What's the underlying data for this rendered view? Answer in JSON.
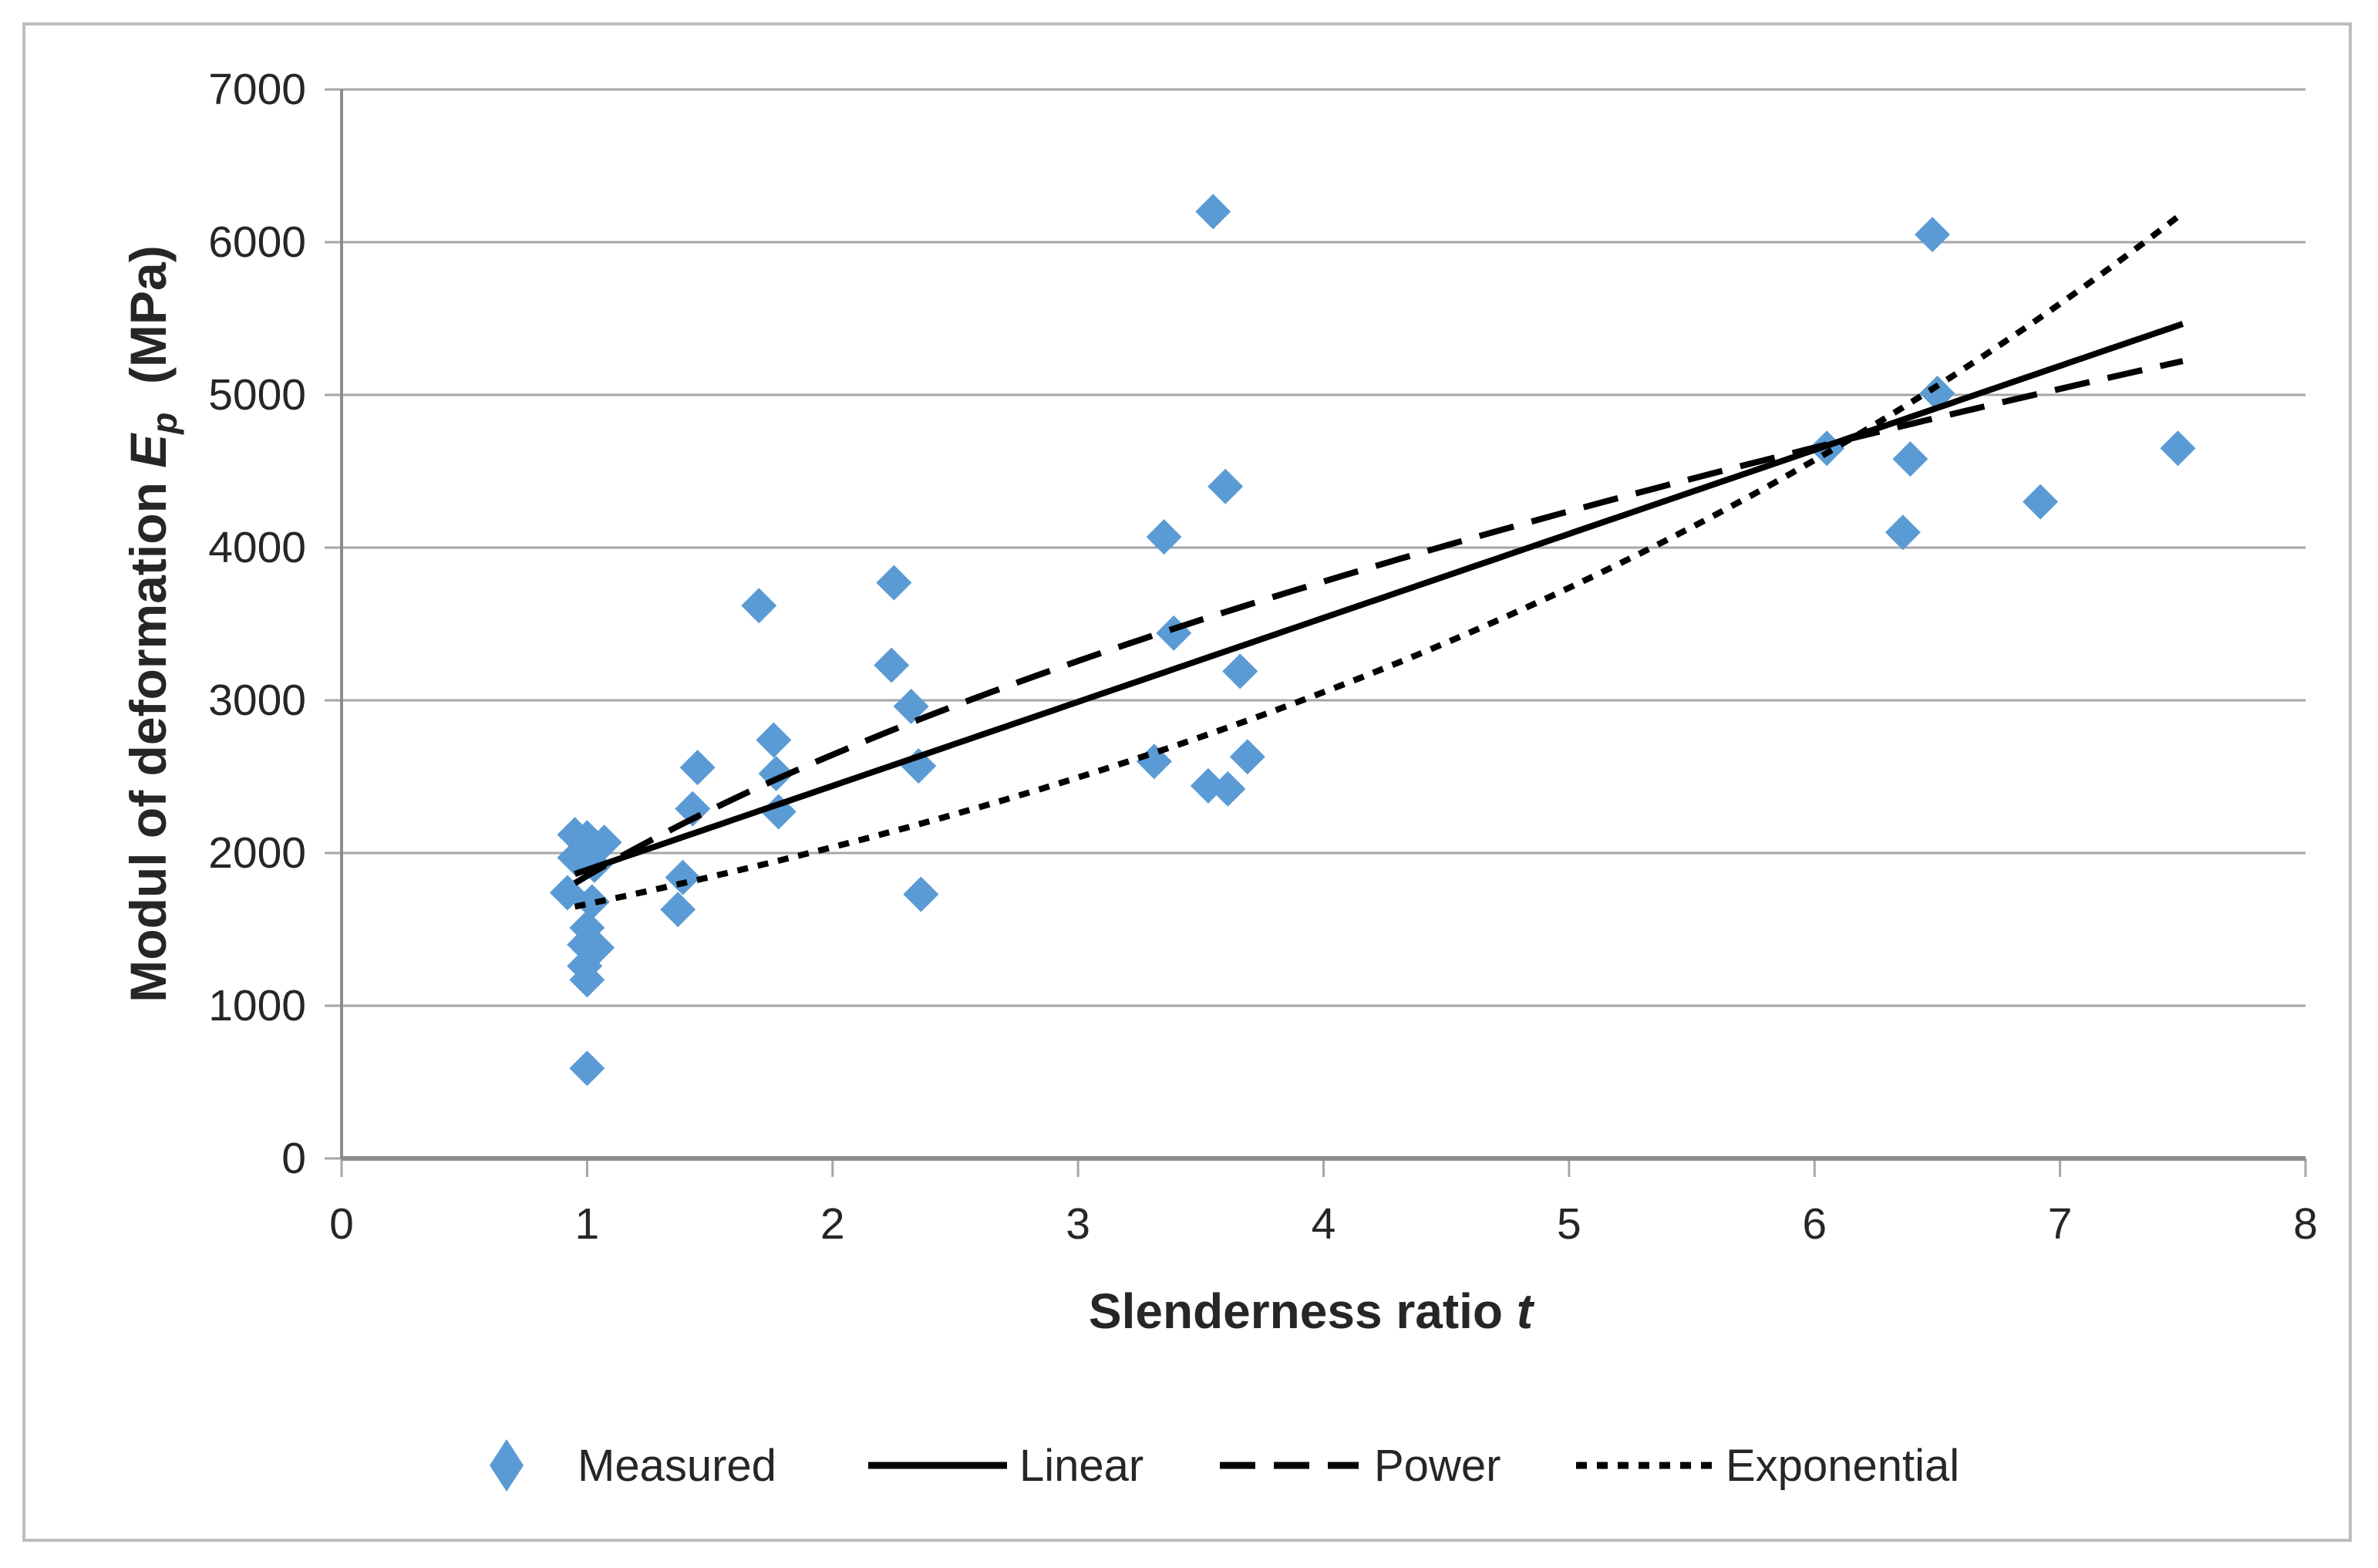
{
  "figure": {
    "background": "#ffffff",
    "border_color": "#bdbdbd",
    "plot_bg": "#ffffff"
  },
  "colors": {
    "marker": "#5B9BD5",
    "trendline": "#000000",
    "gridline": "#a6a6a6",
    "axis_line": "#8c8c8c",
    "tick_text": "#262626",
    "title_text": "#000000"
  },
  "chart_data": {
    "type": "scatter",
    "title": "",
    "xlabel": {
      "prefix": "Slenderness ratio ",
      "symbol": "t"
    },
    "ylabel": {
      "prefix": "Modul of deformation ",
      "symbol": "E",
      "subscript": "p",
      "suffix": "(MPa)"
    },
    "xlim": [
      0,
      8
    ],
    "ylim": [
      0,
      7000
    ],
    "xticks": [
      0,
      1,
      2,
      3,
      4,
      5,
      6,
      7,
      8
    ],
    "yticks": [
      0,
      1000,
      2000,
      3000,
      4000,
      5000,
      6000,
      7000
    ],
    "grid": "horizontal-only",
    "legend_position": "bottom",
    "series": [
      {
        "name": "Measured",
        "kind": "scatter",
        "marker": "diamond",
        "color": "#5B9BD5",
        "points": [
          [
            0.95,
            2120
          ],
          [
            1.0,
            2100
          ],
          [
            1.07,
            2070
          ],
          [
            0.95,
            1970
          ],
          [
            1.03,
            1920
          ],
          [
            0.92,
            1740
          ],
          [
            1.02,
            1680
          ],
          [
            1.0,
            1510
          ],
          [
            0.99,
            1400
          ],
          [
            1.04,
            1380
          ],
          [
            0.99,
            1260
          ],
          [
            1.0,
            1170
          ],
          [
            1.0,
            590
          ],
          [
            1.45,
            2560
          ],
          [
            1.43,
            2290
          ],
          [
            1.39,
            1840
          ],
          [
            1.37,
            1630
          ],
          [
            1.7,
            3620
          ],
          [
            1.76,
            2740
          ],
          [
            1.77,
            2520
          ],
          [
            1.78,
            2270
          ],
          [
            2.25,
            3770
          ],
          [
            2.24,
            3230
          ],
          [
            2.32,
            2960
          ],
          [
            2.35,
            2570
          ],
          [
            2.36,
            1730
          ],
          [
            3.55,
            6200
          ],
          [
            3.35,
            4070
          ],
          [
            3.6,
            4400
          ],
          [
            3.39,
            3440
          ],
          [
            3.66,
            3190
          ],
          [
            3.31,
            2600
          ],
          [
            3.53,
            2440
          ],
          [
            3.61,
            2420
          ],
          [
            3.69,
            2630
          ],
          [
            6.05,
            4650
          ],
          [
            6.39,
            4580
          ],
          [
            6.36,
            4100
          ],
          [
            6.48,
            6050
          ],
          [
            6.5,
            5010
          ],
          [
            6.92,
            4300
          ],
          [
            7.48,
            4650
          ]
        ]
      },
      {
        "name": "Linear",
        "kind": "trendline",
        "model": "linear",
        "style": "solid",
        "params": {
          "a": 1340,
          "b": 550
        },
        "domain": [
          0.95,
          7.5
        ]
      },
      {
        "name": "Power",
        "kind": "trendline",
        "model": "power",
        "style": "long-dash",
        "params": {
          "c": 1850,
          "d": 0.515
        },
        "domain": [
          0.95,
          7.5
        ]
      },
      {
        "name": "Exponential",
        "kind": "trendline",
        "model": "exponential",
        "style": "short-dash",
        "params": {
          "p": 1361,
          "q": 0.202
        },
        "domain": [
          0.95,
          7.5
        ]
      }
    ]
  },
  "legend": {
    "items": [
      {
        "label": "Measured",
        "swatch": "diamond"
      },
      {
        "label": "Linear",
        "swatch": "solid-line"
      },
      {
        "label": "Power",
        "swatch": "long-dash-line"
      },
      {
        "label": "Exponential",
        "swatch": "short-dash-line"
      }
    ]
  }
}
